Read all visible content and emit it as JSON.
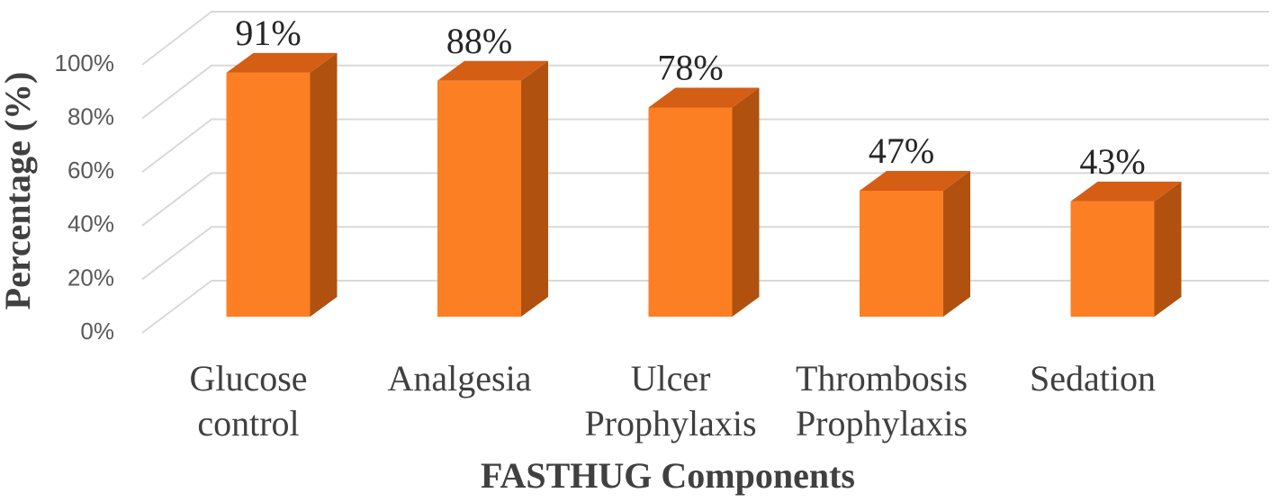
{
  "chart_data": {
    "type": "bar3d",
    "title": null,
    "x_label": "FASTHUG Components",
    "y_label": "Percentage (%)",
    "categories": [
      "Glucose control",
      "Analgesia",
      "Ulcer Prophylaxis",
      "Thrombosis Prophylaxis",
      "Sedation"
    ],
    "values": [
      91,
      88,
      78,
      47,
      43
    ],
    "value_labels": [
      "91%",
      "88%",
      "78%",
      "47%",
      "43%"
    ],
    "color": "#fd7f23",
    "ylim": [
      0,
      100
    ],
    "yticks": [
      {
        "value": 0,
        "label": "0%"
      },
      {
        "value": 20,
        "label": "20%"
      },
      {
        "value": 40,
        "label": "40%"
      },
      {
        "value": 60,
        "label": "60%"
      },
      {
        "value": 80,
        "label": "80%"
      },
      {
        "value": 100,
        "label": "100%"
      }
    ],
    "grid": true
  }
}
